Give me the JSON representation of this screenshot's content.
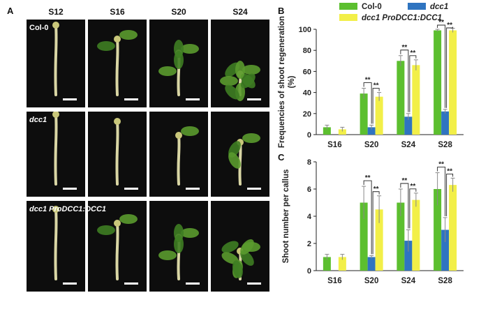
{
  "figure": {
    "panels": {
      "a": "A",
      "b": "B",
      "c": "C"
    },
    "columns": [
      "S12",
      "S16",
      "S20",
      "S24"
    ],
    "rows": [
      {
        "label": "Col-0",
        "italic": false
      },
      {
        "label": "dcc1",
        "italic": true
      },
      {
        "label": "dcc1 ProDCC1:DCC1",
        "italic": true
      }
    ]
  },
  "legend": {
    "col0": "Col-0",
    "dcc1": "dcc1",
    "comp": "dcc1 ProDCC1:DCC1"
  },
  "colors": {
    "col0": "#5cbf2f",
    "dcc1": "#2f74c0",
    "comp": "#f2ef48",
    "photo_bg": "#0d0d0d"
  },
  "chart_data": [
    {
      "panel": "B",
      "type": "bar",
      "categories": [
        "S16",
        "S20",
        "S24",
        "S28"
      ],
      "ylabel": "Frequencies of shoot regeneration (%)",
      "ylim": [
        0,
        100
      ],
      "yticks": [
        0,
        20,
        40,
        60,
        80,
        100
      ],
      "series": [
        {
          "name": "Col-0",
          "values": [
            7,
            39,
            70,
            99
          ],
          "errors": [
            2,
            5,
            5,
            1
          ]
        },
        {
          "name": "dcc1",
          "values": [
            null,
            7,
            17,
            22
          ],
          "errors": [
            null,
            2,
            3,
            2
          ]
        },
        {
          "name": "dcc1 ProDCC1:DCC1",
          "values": [
            5,
            36,
            66,
            99
          ],
          "errors": [
            2,
            4,
            5,
            2
          ]
        }
      ],
      "significance": [
        {
          "category": "S20",
          "label": "**"
        },
        {
          "category": "S20",
          "label": "**"
        },
        {
          "category": "S24",
          "label": "**"
        },
        {
          "category": "S24",
          "label": "**"
        },
        {
          "category": "S28",
          "label": "**"
        },
        {
          "category": "S28",
          "label": "**"
        }
      ]
    },
    {
      "panel": "C",
      "type": "bar",
      "categories": [
        "S16",
        "S20",
        "S24",
        "S28"
      ],
      "ylabel": "Shoot number per callus",
      "ylim": [
        0,
        8
      ],
      "yticks": [
        0,
        2,
        4,
        6,
        8
      ],
      "series": [
        {
          "name": "Col-0",
          "values": [
            1,
            5,
            5,
            6
          ],
          "errors": [
            0.2,
            1.2,
            1.0,
            1.2
          ]
        },
        {
          "name": "dcc1",
          "values": [
            null,
            1,
            2.2,
            3
          ],
          "errors": [
            null,
            0.1,
            0.8,
            0.9
          ]
        },
        {
          "name": "dcc1 ProDCC1:DCC1",
          "values": [
            1,
            4.5,
            5.2,
            6.3
          ],
          "errors": [
            0.2,
            1.0,
            0.5,
            0.5
          ]
        }
      ],
      "significance": [
        {
          "category": "S20",
          "label": "**"
        },
        {
          "category": "S20",
          "label": "**"
        },
        {
          "category": "S24",
          "label": "**"
        },
        {
          "category": "S24",
          "label": "**"
        },
        {
          "category": "S28",
          "label": "**"
        },
        {
          "category": "S28",
          "label": "**"
        }
      ]
    }
  ]
}
